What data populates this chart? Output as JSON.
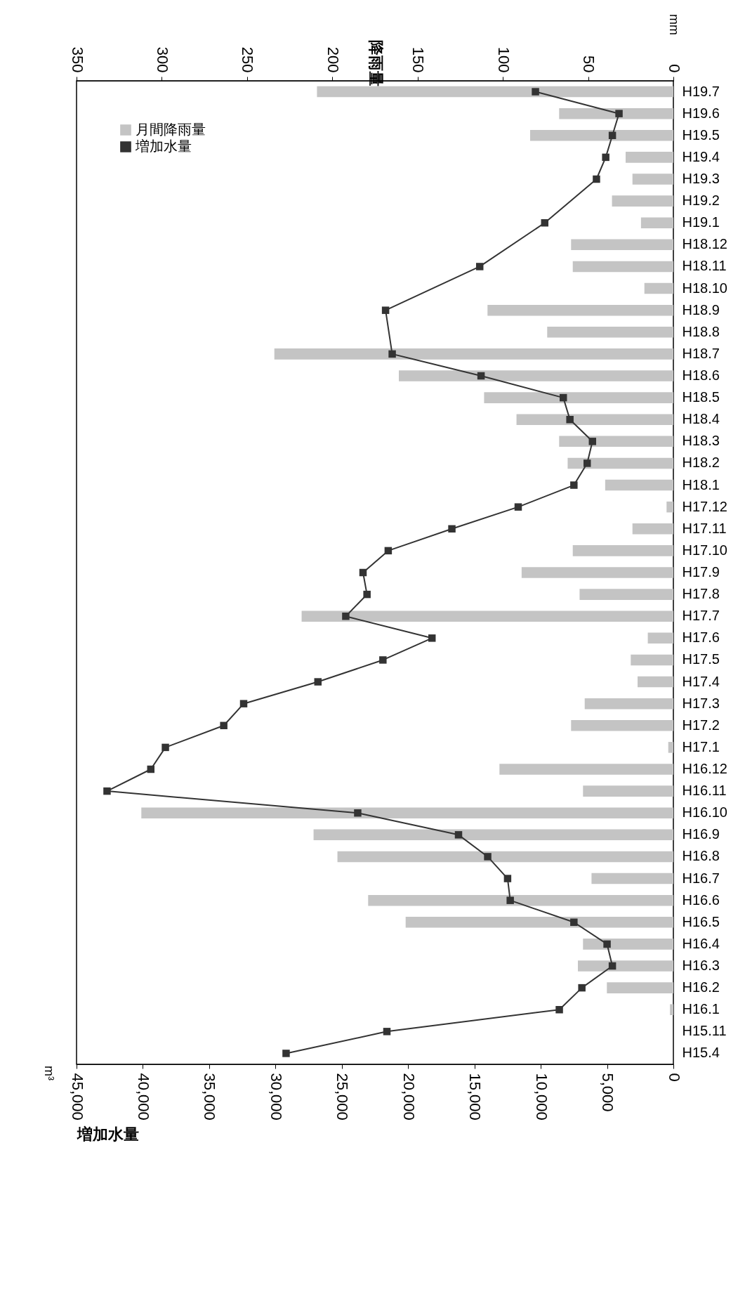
{
  "chart_data": {
    "type": "bar",
    "orientation": "horizontal",
    "xlabel": "増加水量",
    "x2label": "降雨量",
    "categories": [
      "H19.7",
      "H19.6",
      "H19.5",
      "H19.4",
      "H19.3",
      "H19.2",
      "H19.1",
      "H18.12",
      "H18.11",
      "H18.10",
      "H18.9",
      "H18.8",
      "H18.7",
      "H18.6",
      "H18.5",
      "H18.4",
      "H18.3",
      "H18.2",
      "H18.1",
      "H17.12",
      "H17.11",
      "H17.10",
      "H17.9",
      "H17.8",
      "H17.7",
      "H17.6",
      "H17.5",
      "H17.4",
      "H17.3",
      "H17.2",
      "H17.1",
      "H16.12",
      "H16.11",
      "H16.10",
      "H16.9",
      "H16.8",
      "H16.7",
      "H16.6",
      "H16.5",
      "H16.4",
      "H16.3",
      "H16.2",
      "H16.1",
      "H15.11",
      "H15.4"
    ],
    "series": [
      {
        "name": "月間降雨量",
        "axis": "x2",
        "color": "#c4c4c4",
        "values": [
          209,
          67,
          84,
          28,
          24,
          36,
          19,
          60,
          59,
          17,
          109,
          74,
          234,
          161,
          111,
          92,
          67,
          62,
          40,
          4,
          24,
          59,
          89,
          55,
          218,
          15,
          25,
          21,
          52,
          60,
          3,
          102,
          53,
          312,
          211,
          197,
          48,
          179,
          157,
          53,
          56,
          39,
          2,
          null,
          null
        ]
      },
      {
        "name": "増加水量",
        "type": "line",
        "color": "#333333",
        "values": [
          10400,
          4100,
          4600,
          5100,
          5800,
          null,
          9700,
          null,
          14600,
          null,
          21700,
          null,
          21200,
          14500,
          8300,
          7800,
          6100,
          6500,
          7500,
          11700,
          16700,
          21500,
          23400,
          23100,
          24700,
          18200,
          21900,
          26800,
          32400,
          33900,
          38300,
          39400,
          42700,
          23800,
          16200,
          14000,
          12500,
          12300,
          7500,
          5000,
          4600,
          6900,
          8600,
          21600,
          29200
        ]
      }
    ],
    "xlim": [
      45000,
      0
    ],
    "xticks": [
      {
        "value": 45000,
        "label": "45,000"
      },
      {
        "value": 40000,
        "label": "40,000"
      },
      {
        "value": 35000,
        "label": "35,000"
      },
      {
        "value": 30000,
        "label": "30,000"
      },
      {
        "value": 25000,
        "label": "25,000"
      },
      {
        "value": 20000,
        "label": "20,000"
      },
      {
        "value": 15000,
        "label": "15,000"
      },
      {
        "value": 10000,
        "label": "10,000"
      },
      {
        "value": 5000,
        "label": "5,000"
      },
      0
    ],
    "x2lim": [
      350,
      0
    ],
    "x2ticks": [
      350,
      300,
      250,
      200,
      150,
      100,
      50,
      0
    ],
    "marker": "square",
    "legend": "top left",
    "annotations": [
      "m³",
      "mm"
    ]
  }
}
